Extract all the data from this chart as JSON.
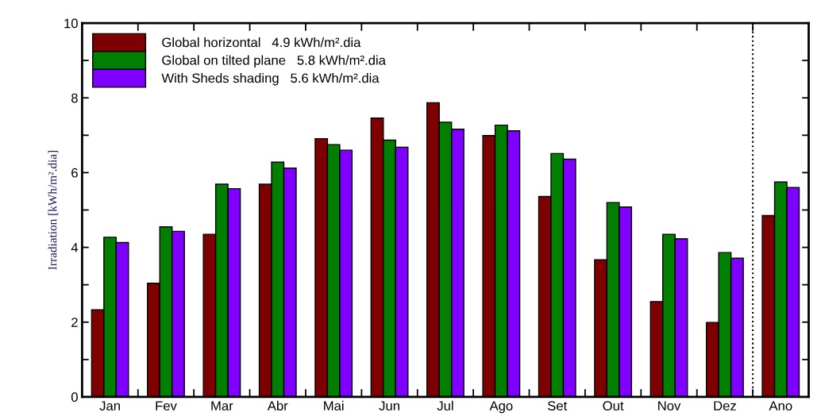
{
  "chart_data": {
    "type": "bar",
    "ylabel": "Irradiation [kWh/m².dia]",
    "categories": [
      "Jan",
      "Fev",
      "Mar",
      "Abr",
      "Mai",
      "Jun",
      "Jul",
      "Ago",
      "Set",
      "Out",
      "Nov",
      "Dez",
      "Ano"
    ],
    "series": [
      {
        "name": "Global horizontal   4.9 kWh/m².dia",
        "color": "#7f0000",
        "values": [
          2.33,
          3.04,
          4.35,
          5.69,
          6.91,
          7.46,
          7.87,
          6.99,
          5.36,
          3.67,
          2.55,
          1.99,
          4.85
        ]
      },
      {
        "name": "Global on tilted plane   5.8 kWh/m².dia",
        "color": "#007f00",
        "values": [
          4.27,
          4.55,
          5.69,
          6.28,
          6.75,
          6.87,
          7.35,
          7.27,
          6.51,
          5.2,
          4.35,
          3.86,
          5.75
        ]
      },
      {
        "name": "With Sheds shading   5.6 kWh/m².dia",
        "color": "#7f00ff",
        "values": [
          4.13,
          4.43,
          5.57,
          6.12,
          6.6,
          6.68,
          7.16,
          7.12,
          6.36,
          5.08,
          4.23,
          3.71,
          5.6
        ]
      }
    ],
    "ylim": [
      0,
      10
    ],
    "yticks": [
      0,
      {
        "value": 1,
        "label": null
      },
      2,
      {
        "value": 3,
        "label": null
      },
      4,
      {
        "value": 5,
        "label": null
      },
      6,
      {
        "value": 7,
        "label": null
      },
      8,
      {
        "value": 9,
        "label": null
      },
      10
    ],
    "legend": "top left",
    "grid": false
  }
}
